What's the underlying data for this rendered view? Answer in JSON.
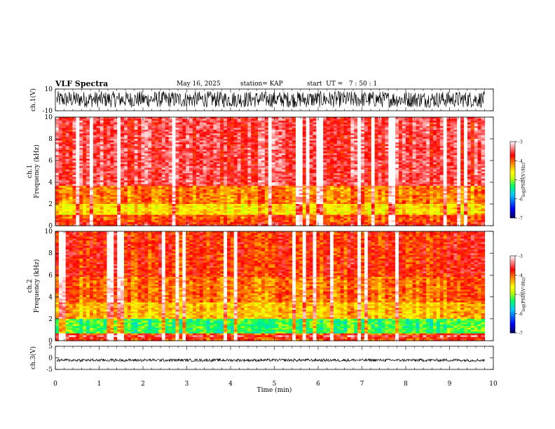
{
  "header": {
    "title": "VLF Spectra",
    "date": "May 16, 2025",
    "station": "station= KAP",
    "start": "start  UT =   7 : 50 : 1"
  },
  "chart_data": [
    {
      "type": "line",
      "panel": "ch1-waveform",
      "ylabel": "ch.1(V)",
      "ylim": [
        -10,
        10
      ],
      "yticks": [
        "10",
        "-10"
      ],
      "xlim": [
        0,
        10
      ],
      "x_end": 9.8,
      "description_values": "dense waveform oscillating between about -7 and 8 V"
    },
    {
      "type": "heatmap",
      "panel": "ch1-spectrogram",
      "ylabel": "ch.1\nFrequency (kHz)",
      "ylim": [
        0,
        10
      ],
      "yticks": [
        "0",
        "2",
        "4",
        "6",
        "8",
        "10"
      ],
      "xlim": [
        0,
        10
      ],
      "x_end": 9.8,
      "colorbar": {
        "label": "log(PSD)(V²/Hz)",
        "range": [
          -7,
          -3
        ],
        "ticks": [
          "-3",
          "-4",
          "-5",
          "-6",
          "-7"
        ]
      }
    },
    {
      "type": "heatmap",
      "panel": "ch2-spectrogram",
      "ylabel": "ch.2\nFrequency (kHz)",
      "ylim": [
        0,
        10
      ],
      "yticks": [
        "0",
        "2",
        "4",
        "6",
        "8",
        "10"
      ],
      "xlim": [
        0,
        10
      ],
      "x_end": 9.8,
      "colorbar": {
        "label": "log(PSD)(V²/Hz)",
        "range": [
          -7,
          -3
        ],
        "ticks": [
          "-3",
          "-4",
          "-5",
          "-6",
          "-7"
        ]
      }
    },
    {
      "type": "line",
      "panel": "ch3-waveform",
      "ylabel": "ch.3(V)",
      "ylim": [
        -5,
        5
      ],
      "yticks": [
        "5",
        "0",
        "-5"
      ],
      "xlim": [
        0,
        10
      ],
      "x_end": 9.8,
      "xlabel": "Time (min)",
      "xticks": [
        "0",
        "1",
        "2",
        "3",
        "4",
        "5",
        "6",
        "7",
        "8",
        "9",
        "10"
      ],
      "description_values": "nearly constant signal around -1 V"
    }
  ],
  "colors": {
    "colorbar_stops": [
      "#000060",
      "#0000ff",
      "#00c8ff",
      "#00ff60",
      "#c8ff00",
      "#ffff00",
      "#ff8000",
      "#ff0000",
      "#ffffff"
    ]
  }
}
